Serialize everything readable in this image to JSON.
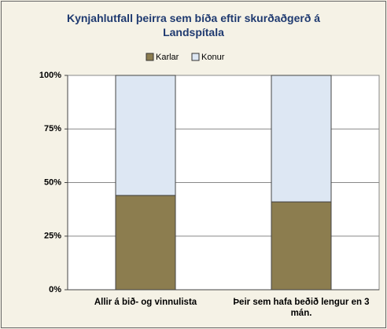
{
  "chart_data": {
    "type": "stacked_bar",
    "title": "Kynjahlutfall þeirra sem bíða eftir skurðaðgerð á Landspítala",
    "categories": [
      "Allir á bið- og vinnulista",
      "Þeir sem hafa beðið lengur en 3 mán."
    ],
    "series": [
      {
        "name": "Karlar",
        "color": "#8c7d4f",
        "values": [
          44,
          41
        ]
      },
      {
        "name": "Konur",
        "color": "#dde7f3",
        "values": [
          56,
          59
        ]
      }
    ],
    "ylim": [
      0,
      100
    ],
    "yticks": [
      {
        "value": 0,
        "label": "0%"
      },
      {
        "value": 25,
        "label": "25%"
      },
      {
        "value": 50,
        "label": "50%"
      },
      {
        "value": 75,
        "label": "75%"
      },
      {
        "value": 100,
        "label": "100%"
      }
    ],
    "grid": true,
    "legend": "top"
  }
}
